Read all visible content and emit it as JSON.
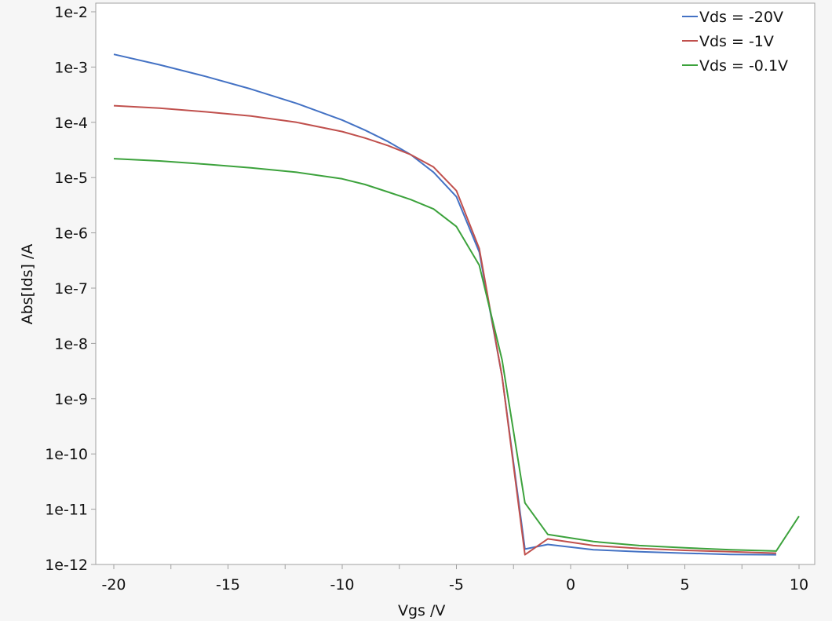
{
  "chart_data": {
    "type": "line",
    "title": "",
    "xlabel": "Vgs /V",
    "ylabel": "Abs[Ids] /A",
    "yscale": "log",
    "xlim": [
      -20.8,
      10.7
    ],
    "ylim": [
      1e-12,
      0.014
    ],
    "grid": false,
    "legend_position": "upper right",
    "x_ticks": [
      -20,
      -15,
      -10,
      -5,
      0,
      5,
      10
    ],
    "x_tick_labels": [
      "-20",
      "-15",
      "-10",
      "-5",
      "0",
      "5",
      "10"
    ],
    "y_ticks": [
      0.01,
      0.001,
      0.0001,
      1e-05,
      1e-06,
      1e-07,
      1e-08,
      1e-09,
      1e-10,
      1e-11,
      1e-12
    ],
    "y_tick_labels": [
      "1e-2",
      "1e-3",
      "1e-4",
      "1e-5",
      "1e-6",
      "1e-7",
      "1e-8",
      "1e-9",
      "1e-10",
      "1e-11",
      "1e-12"
    ],
    "series": [
      {
        "name": "Vds = -20V",
        "color": "#4472c4",
        "x": [
          -20,
          -18,
          -16,
          -14,
          -12,
          -10,
          -9,
          -8,
          -7,
          -6,
          -5,
          -4,
          -3,
          -2,
          -1,
          1,
          3,
          5,
          7,
          9
        ],
        "values": [
          0.0017,
          0.0011,
          0.00068,
          0.0004,
          0.00022,
          0.00011,
          7.2e-05,
          4.5e-05,
          2.6e-05,
          1.25e-05,
          4.5e-06,
          4.5e-07,
          2.5e-09,
          1.9e-12,
          2.3e-12,
          1.85e-12,
          1.7e-12,
          1.6e-12,
          1.52e-12,
          1.5e-12
        ]
      },
      {
        "name": "Vds = -1V",
        "color": "#c0504d",
        "x": [
          -20,
          -18,
          -16,
          -14,
          -12,
          -10,
          -9,
          -8,
          -7,
          -6,
          -5,
          -4,
          -3,
          -2,
          -1,
          1,
          3,
          5,
          7,
          9
        ],
        "values": [
          0.0002,
          0.00018,
          0.000155,
          0.00013,
          0.0001,
          6.8e-05,
          5.2e-05,
          3.8e-05,
          2.6e-05,
          1.55e-05,
          5.8e-06,
          5.2e-07,
          2.5e-09,
          1.5e-12,
          2.9e-12,
          2.2e-12,
          1.95e-12,
          1.8e-12,
          1.7e-12,
          1.6e-12
        ]
      },
      {
        "name": "Vds = -0.1V",
        "color": "#3ca23c",
        "x": [
          -20,
          -18,
          -16,
          -14,
          -12,
          -10,
          -9,
          -8,
          -7,
          -6,
          -5,
          -4,
          -3,
          -2,
          -1,
          1,
          3,
          5,
          7,
          9,
          10
        ],
        "values": [
          2.2e-05,
          2e-05,
          1.75e-05,
          1.5e-05,
          1.25e-05,
          9.5e-06,
          7.5e-06,
          5.5e-06,
          4e-06,
          2.7e-06,
          1.3e-06,
          2.6e-07,
          5e-09,
          1.3e-11,
          3.5e-12,
          2.6e-12,
          2.2e-12,
          2e-12,
          1.85e-12,
          1.75e-12,
          7.5e-12
        ]
      }
    ]
  },
  "layout": {
    "background": "#f6f6f6",
    "plot_background": "#ffffff",
    "frame_color": "#a0a0a0"
  }
}
